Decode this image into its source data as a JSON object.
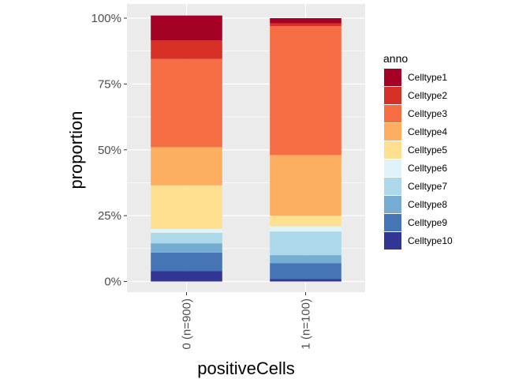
{
  "chart_data": {
    "type": "bar",
    "stacked": true,
    "xlabel": "positiveCells",
    "ylabel": "proportion",
    "ylim": [
      0,
      1
    ],
    "yticks": [
      0,
      0.25,
      0.5,
      0.75,
      1
    ],
    "ytick_labels": [
      "0%",
      "25%",
      "50%",
      "75%",
      "100%"
    ],
    "categories": [
      "0 (n=900)",
      "1 (n=100)"
    ],
    "legend_title": "anno",
    "legend_position": "right",
    "grid": true,
    "stack_order_top_to_bottom": [
      "Celltype1",
      "Celltype2",
      "Celltype3",
      "Celltype4",
      "Celltype5",
      "Celltype6",
      "Celltype7",
      "Celltype8",
      "Celltype9",
      "Celltype10"
    ],
    "series": [
      {
        "name": "Celltype1",
        "color": "#A50026",
        "values": [
          0.095,
          0.02
        ]
      },
      {
        "name": "Celltype2",
        "color": "#D73027",
        "values": [
          0.07,
          0.01
        ]
      },
      {
        "name": "Celltype3",
        "color": "#F46D43",
        "values": [
          0.335,
          0.49
        ]
      },
      {
        "name": "Celltype4",
        "color": "#FDAE61",
        "values": [
          0.145,
          0.23
        ]
      },
      {
        "name": "Celltype5",
        "color": "#FEE090",
        "values": [
          0.165,
          0.04
        ]
      },
      {
        "name": "Celltype6",
        "color": "#E0F3F8",
        "values": [
          0.015,
          0.02
        ]
      },
      {
        "name": "Celltype7",
        "color": "#ABD9E9",
        "values": [
          0.04,
          0.09
        ]
      },
      {
        "name": "Celltype8",
        "color": "#74ADD1",
        "values": [
          0.035,
          0.03
        ]
      },
      {
        "name": "Celltype9",
        "color": "#4575B4",
        "values": [
          0.07,
          0.06
        ]
      },
      {
        "name": "Celltype10",
        "color": "#313695",
        "values": [
          0.04,
          0.01
        ]
      }
    ]
  }
}
